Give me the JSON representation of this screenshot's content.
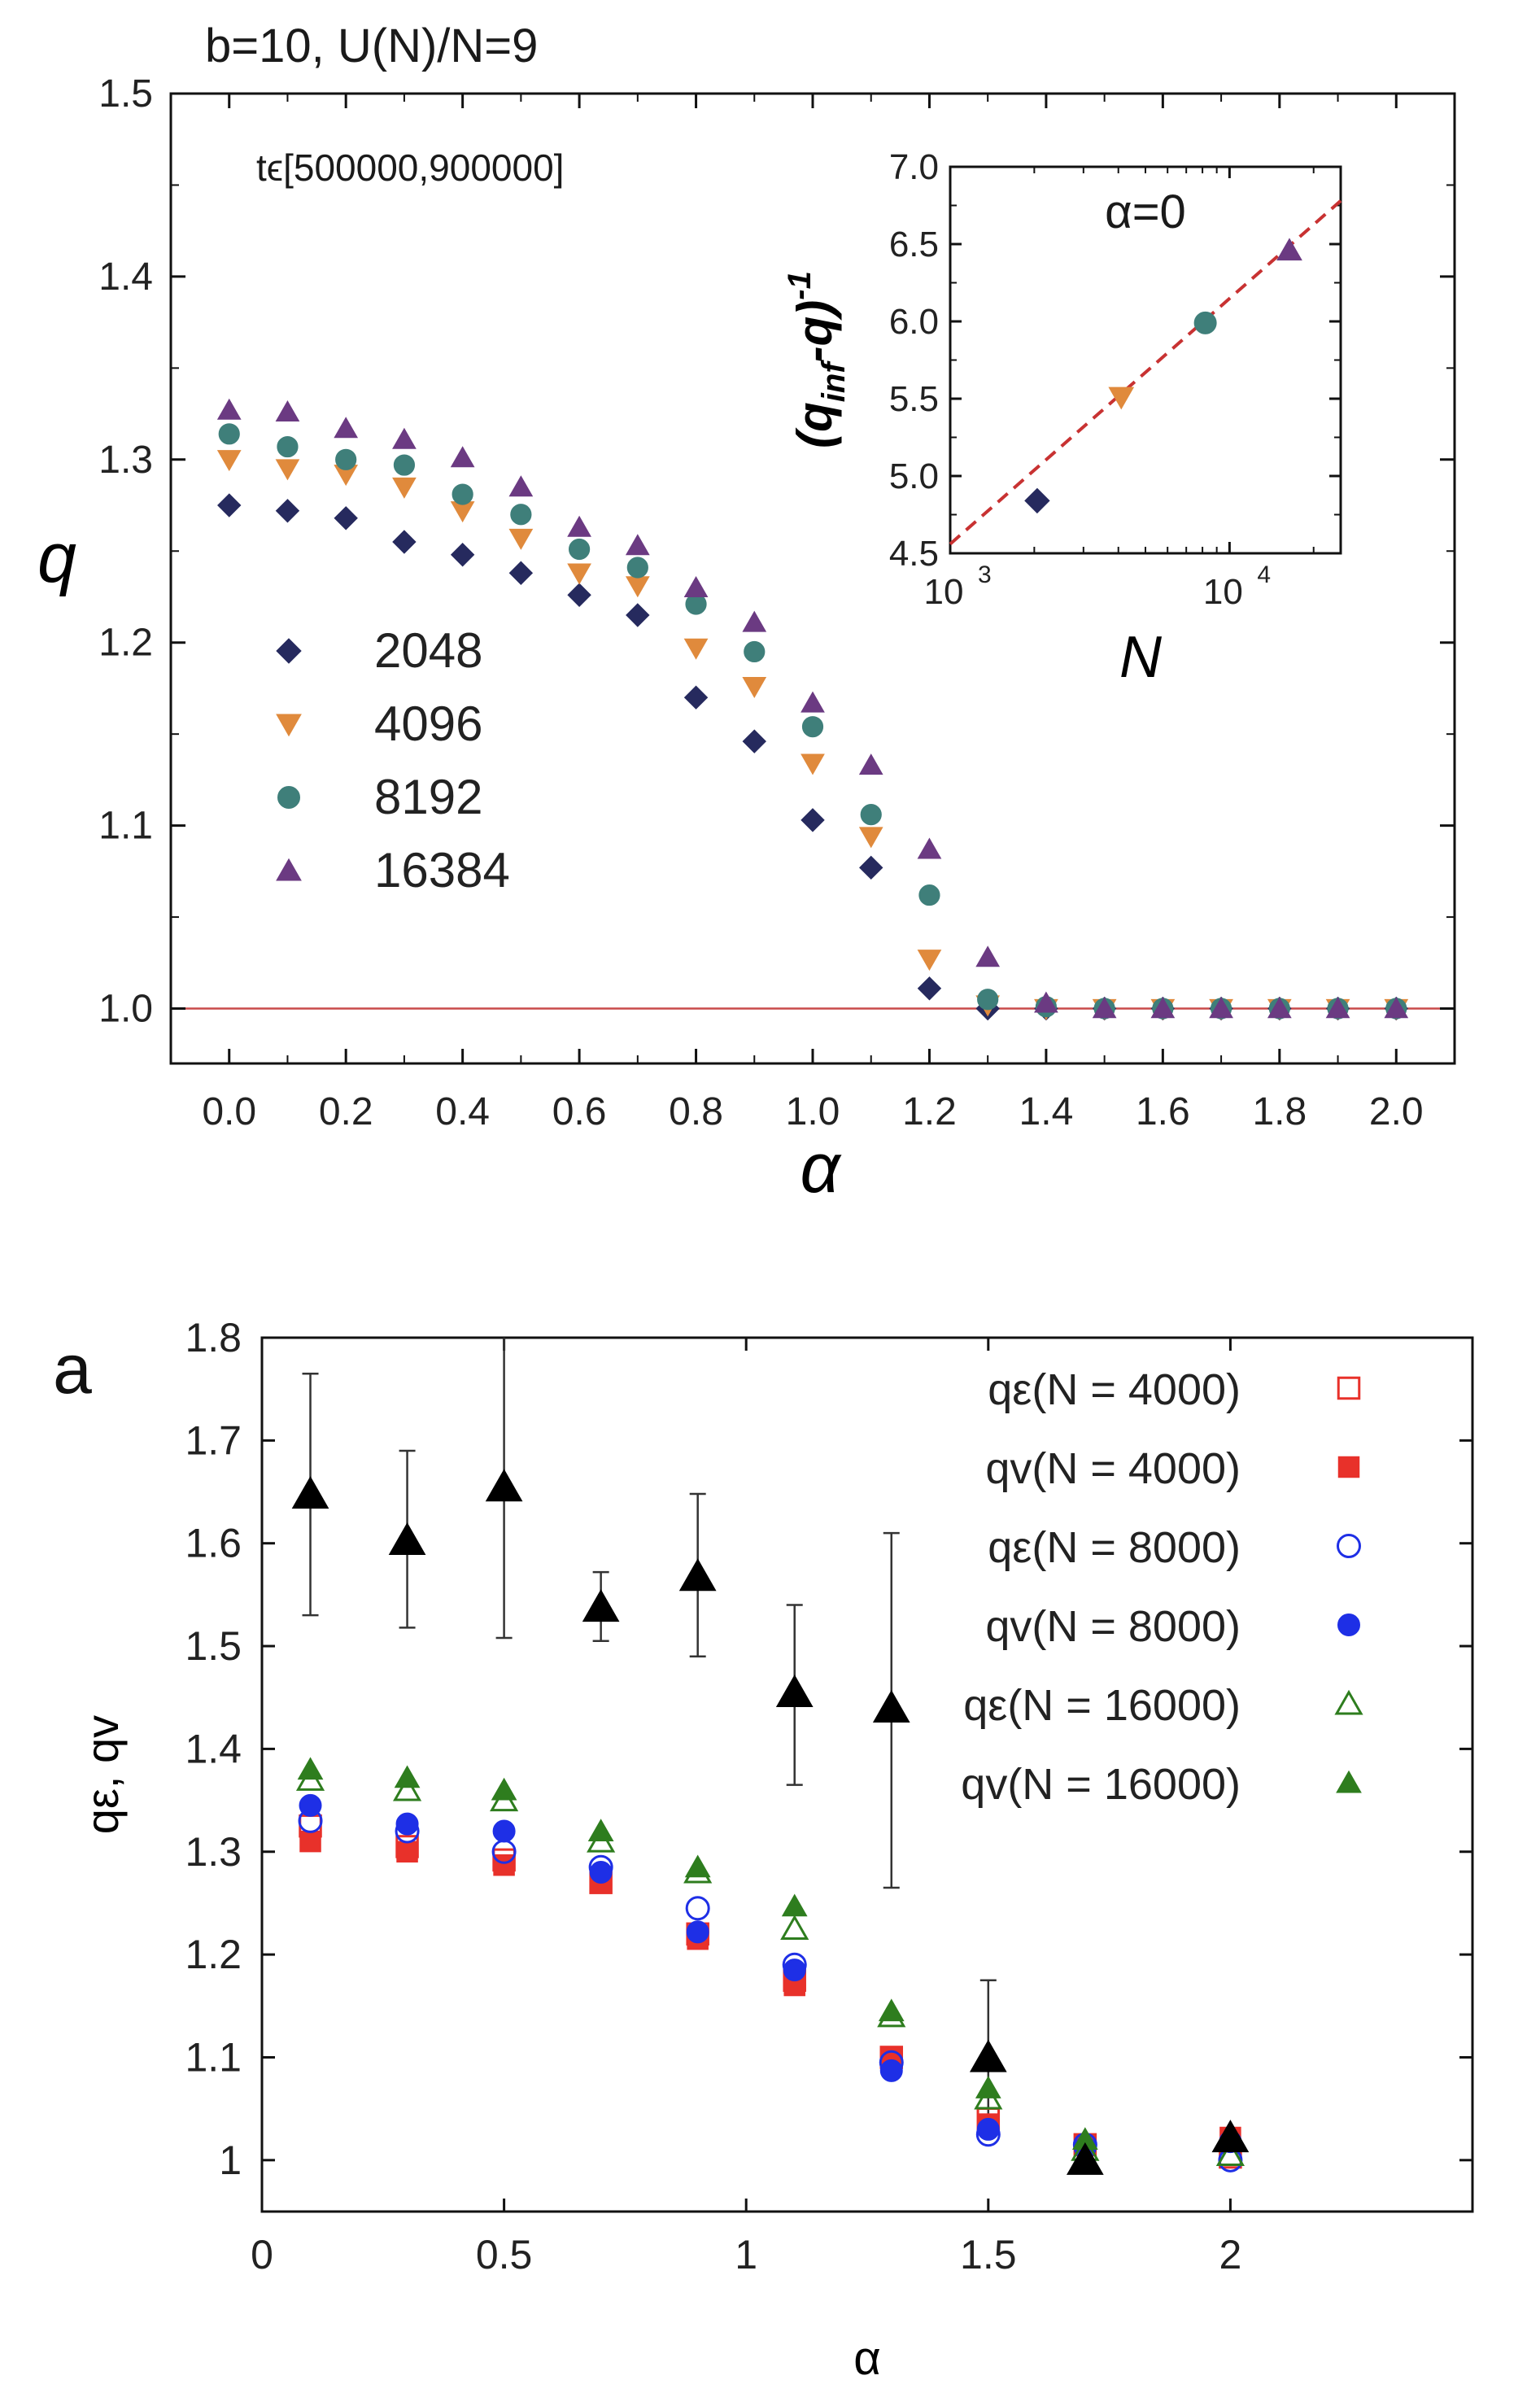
{
  "chart_data": [
    {
      "type": "scatter",
      "title": "b=10, U(N)/N=9",
      "annotation": "tϵ[500000,900000]",
      "xlabel": "α",
      "ylabel": "q",
      "xlim": [
        -0.1,
        2.1
      ],
      "ylim": [
        0.97,
        1.5
      ],
      "x_ticks": [
        "0.0",
        "0.2",
        "0.4",
        "0.6",
        "0.8",
        "1.0",
        "1.2",
        "1.4",
        "1.6",
        "1.8",
        "2.0"
      ],
      "y_ticks": [
        "1.0",
        "1.1",
        "1.2",
        "1.3",
        "1.4",
        "1.5"
      ],
      "reference_line": 1.0,
      "legend_position": "middle-left",
      "x": [
        0.0,
        0.1,
        0.2,
        0.3,
        0.4,
        0.5,
        0.6,
        0.7,
        0.8,
        0.9,
        1.0,
        1.1,
        1.2,
        1.3,
        1.4,
        1.5,
        1.6,
        1.7,
        1.8,
        1.9,
        2.0
      ],
      "series": [
        {
          "name": "2048",
          "marker": "diamond",
          "color": "#262a5e",
          "values": [
            1.275,
            1.272,
            1.268,
            1.255,
            1.248,
            1.238,
            1.226,
            1.215,
            1.17,
            1.146,
            1.103,
            1.077,
            1.011,
            1.0,
            1.0,
            1.0,
            1.0,
            1.0,
            1.0,
            1.0,
            1.0
          ]
        },
        {
          "name": "4096",
          "marker": "triangle-down",
          "color": "#e08a3c",
          "values": [
            1.3,
            1.295,
            1.292,
            1.285,
            1.272,
            1.257,
            1.238,
            1.231,
            1.197,
            1.176,
            1.134,
            1.094,
            1.027,
            1.002,
            1.0,
            1.0,
            1.0,
            1.0,
            1.0,
            1.0,
            1.0
          ]
        },
        {
          "name": "8192",
          "marker": "circle",
          "color": "#3f7f7a",
          "values": [
            1.314,
            1.307,
            1.3,
            1.297,
            1.281,
            1.27,
            1.251,
            1.241,
            1.221,
            1.195,
            1.154,
            1.106,
            1.062,
            1.005,
            1.001,
            1.0,
            1.0,
            1.0,
            1.0,
            1.0,
            1.0
          ]
        },
        {
          "name": "16384",
          "marker": "triangle-up",
          "color": "#6b3a82",
          "values": [
            1.327,
            1.326,
            1.317,
            1.311,
            1.301,
            1.285,
            1.263,
            1.253,
            1.23,
            1.211,
            1.167,
            1.133,
            1.087,
            1.028,
            1.003,
            1.0,
            1.0,
            1.0,
            1.0,
            1.0,
            1.0
          ]
        }
      ],
      "inset": {
        "label": "α=0",
        "xlabel": "N",
        "ylabel": "(q_inf-q)^-1",
        "xscale": "log",
        "xlim": [
          1000,
          25000
        ],
        "ylim": [
          4.5,
          7.0
        ],
        "y_ticks": [
          "4.5",
          "5.0",
          "5.5",
          "6.0",
          "6.5",
          "7.0"
        ],
        "x_ticks": [
          {
            "base": "10",
            "exp": "3"
          },
          {
            "base": "10",
            "exp": "4"
          }
        ],
        "points": [
          {
            "x": 2048,
            "y": 4.84,
            "marker": "diamond"
          },
          {
            "x": 4096,
            "y": 5.51,
            "marker": "triangle-down"
          },
          {
            "x": 8192,
            "y": 5.99,
            "marker": "circle"
          },
          {
            "x": 16384,
            "y": 6.46,
            "marker": "triangle-up"
          }
        ],
        "fit_line": {
          "x": [
            1000,
            25000
          ],
          "y": [
            4.56,
            6.78
          ],
          "color": "#c83232",
          "style": "dashed"
        }
      }
    },
    {
      "type": "scatter",
      "panel_label": "a",
      "xlabel": "α",
      "ylabel": "qε, qv",
      "xlim": [
        0,
        2.5
      ],
      "ylim": [
        0.95,
        1.8
      ],
      "x_ticks": [
        "0",
        "0.5",
        "1",
        "1.5",
        "2"
      ],
      "y_ticks": [
        "1",
        "1.1",
        "1.2",
        "1.3",
        "1.4",
        "1.5",
        "1.6",
        "1.7",
        "1.8"
      ],
      "legend_position": "top-right",
      "series": [
        {
          "name": "qε(N = 4000)",
          "marker": "square-open",
          "color": "#e8312a",
          "x": [
            0.1,
            0.3,
            0.5,
            0.7,
            0.9,
            1.1,
            1.3,
            1.5,
            1.7,
            2.0
          ],
          "values": [
            1.325,
            1.305,
            1.292,
            1.27,
            1.22,
            1.175,
            1.1,
            1.04,
            1.015,
            1.003
          ]
        },
        {
          "name": "qv(N = 4000)",
          "marker": "square-filled",
          "color": "#e8312a",
          "x": [
            0.1,
            0.3,
            0.5,
            0.7,
            0.9,
            1.1,
            1.3,
            1.5,
            1.7,
            2.0
          ],
          "values": [
            1.31,
            1.3,
            1.287,
            1.27,
            1.215,
            1.17,
            1.1,
            1.035,
            1.015,
            1.022
          ]
        },
        {
          "name": "qε(N = 8000)",
          "marker": "circle-open",
          "color": "#1e2fe6",
          "x": [
            0.1,
            0.3,
            0.5,
            0.7,
            0.9,
            1.1,
            1.3,
            1.5,
            1.7,
            2.0
          ],
          "values": [
            1.33,
            1.32,
            1.3,
            1.285,
            1.245,
            1.19,
            1.095,
            1.025,
            1.015,
            1.0
          ]
        },
        {
          "name": "qv(N = 8000)",
          "marker": "circle-filled",
          "color": "#1e2fe6",
          "x": [
            0.1,
            0.3,
            0.5,
            0.7,
            0.9,
            1.1,
            1.3,
            1.5,
            1.7,
            2.0
          ],
          "values": [
            1.345,
            1.327,
            1.32,
            1.28,
            1.222,
            1.185,
            1.087,
            1.03,
            1.012,
            1.018
          ]
        },
        {
          "name": "qε(N = 16000)",
          "marker": "triangle-open",
          "color": "#2e7d1e",
          "x": [
            0.1,
            0.3,
            0.5,
            0.7,
            0.9,
            1.1,
            1.3,
            1.5,
            1.7,
            2.0
          ],
          "values": [
            1.37,
            1.36,
            1.35,
            1.31,
            1.28,
            1.225,
            1.14,
            1.06,
            1.01,
            1.005
          ]
        },
        {
          "name": "qv(N = 16000)",
          "marker": "triangle-filled",
          "color": "#2e7d1e",
          "x": [
            0.1,
            0.3,
            0.5,
            0.7,
            0.9,
            1.1,
            1.3,
            1.5,
            1.7,
            2.0
          ],
          "values": [
            1.38,
            1.372,
            1.36,
            1.32,
            1.285,
            1.247,
            1.145,
            1.07,
            1.02,
            1.02
          ]
        }
      ],
      "black_series": {
        "marker": "triangle-filled",
        "color": "#000000",
        "x": [
          0.1,
          0.3,
          0.5,
          0.7,
          0.9,
          1.1,
          1.3,
          1.5,
          1.7,
          2.0
        ],
        "values": [
          1.648,
          1.603,
          1.655,
          1.538,
          1.568,
          1.455,
          1.44,
          1.1,
          1.0,
          1.022
        ],
        "err_low": [
          1.53,
          1.518,
          1.508,
          1.505,
          1.49,
          1.365,
          1.265,
          1.025,
          null,
          null
        ],
        "err_high": [
          1.765,
          1.69,
          1.81,
          1.572,
          1.648,
          1.54,
          1.61,
          1.175,
          null,
          null
        ]
      }
    }
  ]
}
